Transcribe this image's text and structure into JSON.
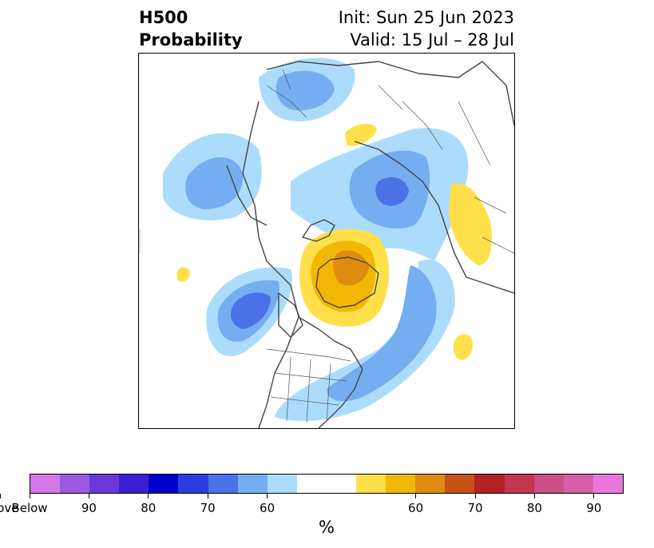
{
  "title": {
    "left_line1": "H500",
    "left_line2": "Probability",
    "right_line1": "Init: Sun 25 Jun 2023",
    "right_line2": "Valid: 15 Jul – 28 Jul"
  },
  "map": {
    "projection": "north-polar-stereographic",
    "coastline_color": "#444444"
  },
  "colorbar": {
    "segments": [
      {
        "category": "below",
        "color": "#d477e8"
      },
      {
        "category": "below",
        "color": "#9b59e0"
      },
      {
        "category": "below",
        "color": "#6b38d8"
      },
      {
        "category": "below",
        "color": "#3a1fd2"
      },
      {
        "category": "below",
        "color": "#0000cc"
      },
      {
        "category": "below",
        "color": "#2a3ee0"
      },
      {
        "category": "below",
        "color": "#4a72e6"
      },
      {
        "category": "below",
        "color": "#74aef0"
      },
      {
        "category": "below",
        "color": "#acdcfb"
      },
      {
        "category": "neutral",
        "color": "#ffffff"
      },
      {
        "category": "above",
        "color": "#ffe04a"
      },
      {
        "category": "above",
        "color": "#f2b705"
      },
      {
        "category": "above",
        "color": "#e08a12"
      },
      {
        "category": "above",
        "color": "#c65218"
      },
      {
        "category": "above",
        "color": "#b22222"
      },
      {
        "category": "above",
        "color": "#c2364e"
      },
      {
        "category": "above",
        "color": "#cc4f86"
      },
      {
        "category": "above",
        "color": "#d95ea9"
      },
      {
        "category": "above",
        "color": "#e877dd"
      }
    ],
    "tick_labels": [
      "Below",
      "90",
      "80",
      "70",
      "60",
      "60",
      "70",
      "80",
      "90",
      "Above"
    ],
    "unit_label": "%"
  }
}
